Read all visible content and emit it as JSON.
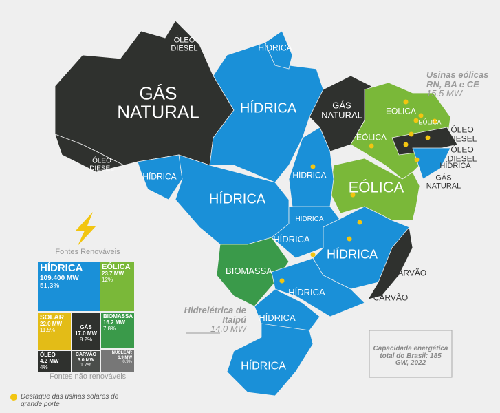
{
  "map": {
    "regions": [
      "ÓLEO DIESEL",
      "HÍDRICA",
      "GÁS NATURAL",
      "HÍDRICA",
      "GÁS NATURAL",
      "EÓLICA",
      "EÓLICA",
      "EÓLICA",
      "ÓLEO DIESEL",
      "ÓLEO DIESEL",
      "HÍDRICA",
      "GÁS NATURAL",
      "ÓLEO DIESEL",
      "HÍDRICA",
      "HÍDRICA",
      "HÍDRICA",
      "EÓLICA",
      "HÍDRICA",
      "HÍDRICA",
      "HÍDRICA",
      "BIOMASSA",
      "CARVÃO",
      "CARVÃO",
      "HÍDRICA",
      "HÍDRICA",
      "HÍDRICA"
    ]
  },
  "annotations": {
    "wind": {
      "title": "Usinas eólicas RN, BA e CE",
      "value": "15.5 MW"
    },
    "itaipu": {
      "title": "Hidrelétrica de Itaipú",
      "value": "14.0 MW"
    },
    "capacity": "Capacidade energética total do Brasil: 185 GW, 2022"
  },
  "treemap": {
    "renewable_title": "Fontes Renováveis",
    "non_renewable_title": "Fontes não renováveis",
    "cells": [
      {
        "name": "HÍDRICA",
        "mw": "109.400 MW",
        "share": "51,3%"
      },
      {
        "name": "EÓLICA",
        "mw": "23.7 MW",
        "share": "12%"
      },
      {
        "name": "BIOMASSA",
        "mw": "16.2 MW",
        "share": "7.8%"
      },
      {
        "name": "SOLAR",
        "mw": "22.0 MW",
        "share": "11,5%"
      },
      {
        "name": "GÁS",
        "mw": "17.0 MW",
        "share": "8.2%"
      },
      {
        "name": "ÓLEO",
        "mw": "4.2 MW",
        "share": "4%"
      },
      {
        "name": "CARVÃO",
        "mw": "3.0 MW",
        "share": "1.7%"
      },
      {
        "name": "NUCLEAR",
        "mw": "1.9 MW",
        "share": "0.9%"
      }
    ]
  },
  "legend": "Destaque das usinas solares de grande porte"
}
